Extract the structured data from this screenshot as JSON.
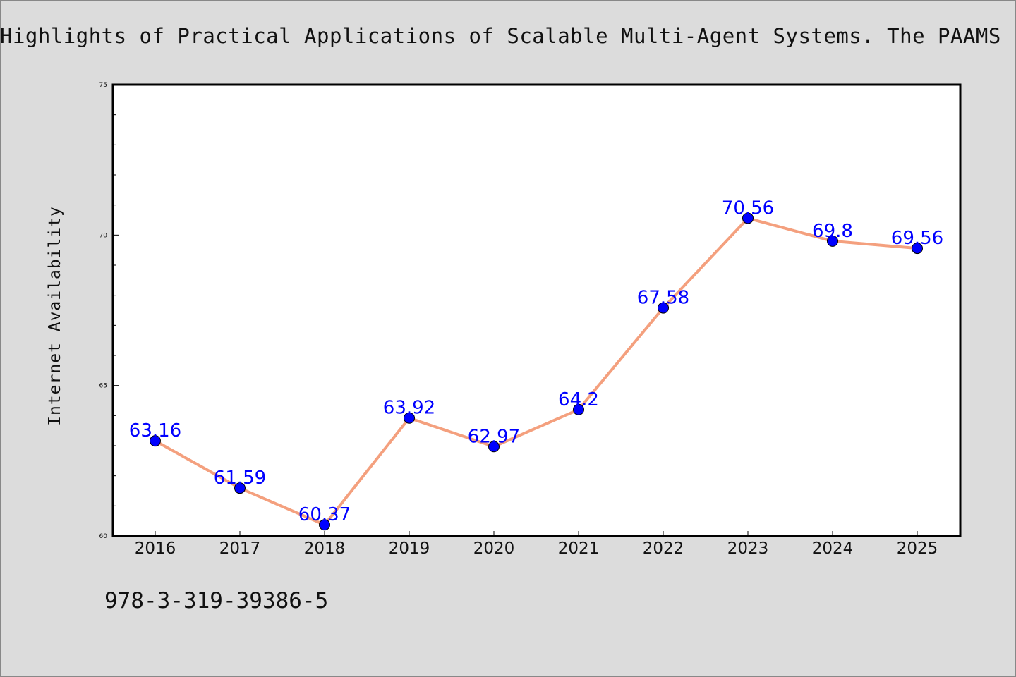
{
  "chart_data": {
    "type": "line",
    "title": "Highlights of Practical Applications of Scalable Multi-Agent Systems. The PAAMS",
    "xlabel": "",
    "ylabel": "Internet Availability",
    "categories": [
      "2016",
      "2017",
      "2018",
      "2019",
      "2020",
      "2021",
      "2022",
      "2023",
      "2024",
      "2025"
    ],
    "series": [
      {
        "values": [
          63.16,
          61.59,
          60.37,
          63.92,
          62.97,
          64.2,
          67.58,
          70.56,
          69.8,
          69.56
        ],
        "labels": [
          "63.16",
          "61.59",
          "60.37",
          "63.92",
          "62.97",
          "64.2",
          "67.58",
          "70.56",
          "69.8",
          "69.56"
        ],
        "line_color": "#f4a07e",
        "marker_color": "#0000ff"
      }
    ],
    "ylim": [
      60,
      75
    ],
    "yticks": [
      "60",
      "65",
      "70",
      "75"
    ],
    "grid": false,
    "legend": "none"
  },
  "footer": {
    "isbn": "978-3-319-39386-5"
  },
  "colors": {
    "background": "#dcdcdc",
    "plot_background": "#ffffff",
    "line": "#f4a07e",
    "marker": "#0000ff",
    "label": "#0000ff"
  }
}
